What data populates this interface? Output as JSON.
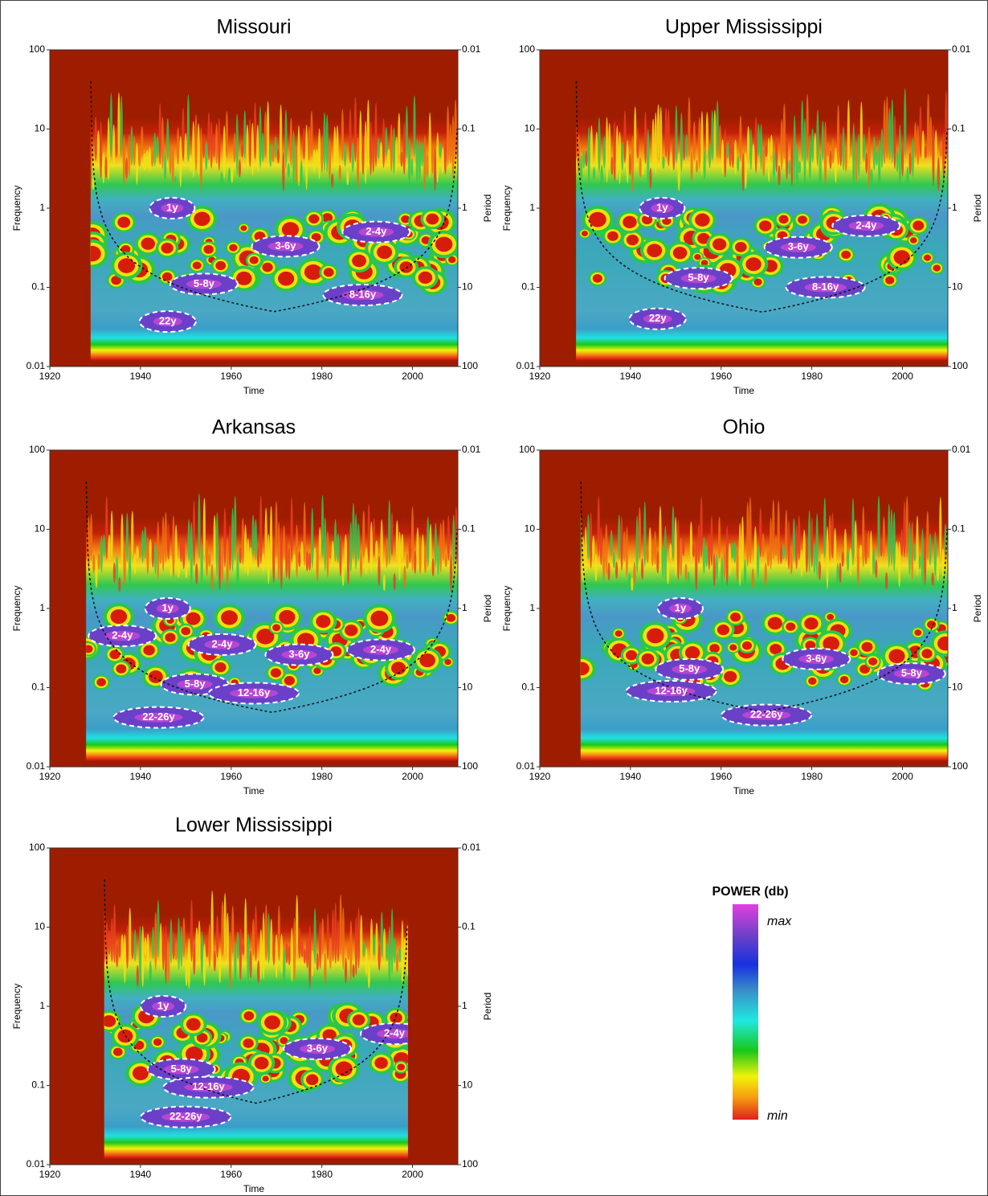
{
  "chart_data": [
    {
      "type": "wavelet",
      "title": "Missouri",
      "x_label": "Time",
      "y_label": "Frequency",
      "y2_label": "Period",
      "xlim": [
        1920,
        2010
      ],
      "xticks": [
        1920,
        1940,
        1960,
        1980,
        2000
      ],
      "ylim": [
        0.01,
        100
      ],
      "yticks": [
        0.01,
        0.1,
        1,
        10,
        100
      ],
      "y_log": true,
      "y2lim": [
        100,
        0.01
      ],
      "y2ticks": [
        0.01,
        0.1,
        1,
        10,
        100
      ],
      "data_span": [
        1929,
        2010
      ],
      "annotations": [
        {
          "text": "1y",
          "x": 1947,
          "y": 1
        },
        {
          "text": "2-4y",
          "x": 1992,
          "y": 0.5
        },
        {
          "text": "3-6y",
          "x": 1972,
          "y": 0.33
        },
        {
          "text": "5-8y",
          "x": 1954,
          "y": 0.11
        },
        {
          "text": "8-16y",
          "x": 1989,
          "y": 0.08
        },
        {
          "text": "22y",
          "x": 1946,
          "y": 0.037
        }
      ]
    },
    {
      "type": "wavelet",
      "title": "Upper Mississippi",
      "x_label": "Time",
      "y_label": "Frequency",
      "y2_label": "Period",
      "xlim": [
        1920,
        2010
      ],
      "xticks": [
        1920,
        1940,
        1960,
        1980,
        2000
      ],
      "ylim": [
        0.01,
        100
      ],
      "yticks": [
        0.01,
        0.1,
        1,
        10,
        100
      ],
      "y_log": true,
      "y2lim": [
        100,
        0.01
      ],
      "y2ticks": [
        0.01,
        0.1,
        1,
        10,
        100
      ],
      "data_span": [
        1928,
        2010
      ],
      "annotations": [
        {
          "text": "1y",
          "x": 1947,
          "y": 1
        },
        {
          "text": "2-4y",
          "x": 1992,
          "y": 0.6
        },
        {
          "text": "3-6y",
          "x": 1977,
          "y": 0.32
        },
        {
          "text": "5-8y",
          "x": 1955,
          "y": 0.13
        },
        {
          "text": "8-16y",
          "x": 1983,
          "y": 0.1
        },
        {
          "text": "22y",
          "x": 1946,
          "y": 0.04
        }
      ]
    },
    {
      "type": "wavelet",
      "title": "Arkansas",
      "x_label": "Time",
      "y_label": "Frequency",
      "y2_label": "Period",
      "xlim": [
        1920,
        2010
      ],
      "xticks": [
        1920,
        1940,
        1960,
        1980,
        2000
      ],
      "ylim": [
        0.01,
        100
      ],
      "yticks": [
        0.01,
        0.1,
        1,
        10,
        100
      ],
      "y_log": true,
      "y2lim": [
        100,
        0.01
      ],
      "y2ticks": [
        0.01,
        0.1,
        1,
        10,
        100
      ],
      "data_span": [
        1928,
        2010
      ],
      "annotations": [
        {
          "text": "1y",
          "x": 1946,
          "y": 1
        },
        {
          "text": "2-4y",
          "x": 1936,
          "y": 0.45
        },
        {
          "text": "2-4y",
          "x": 1958,
          "y": 0.35
        },
        {
          "text": "2-4y",
          "x": 1993,
          "y": 0.3
        },
        {
          "text": "3-6y",
          "x": 1975,
          "y": 0.26
        },
        {
          "text": "5-8y",
          "x": 1952,
          "y": 0.11
        },
        {
          "text": "12-16y",
          "x": 1965,
          "y": 0.085
        },
        {
          "text": "22-26y",
          "x": 1944,
          "y": 0.042
        }
      ]
    },
    {
      "type": "wavelet",
      "title": "Ohio",
      "x_label": "Time",
      "y_label": "Frequency",
      "y2_label": "Period",
      "xlim": [
        1920,
        2010
      ],
      "xticks": [
        1920,
        1940,
        1960,
        1980,
        2000
      ],
      "ylim": [
        0.01,
        100
      ],
      "yticks": [
        0.01,
        0.1,
        1,
        10,
        100
      ],
      "y_log": true,
      "y2lim": [
        100,
        0.01
      ],
      "y2ticks": [
        0.01,
        0.1,
        1,
        10,
        100
      ],
      "data_span": [
        1929,
        2010
      ],
      "annotations": [
        {
          "text": "1y",
          "x": 1951,
          "y": 1
        },
        {
          "text": "5-8y",
          "x": 1953,
          "y": 0.17
        },
        {
          "text": "3-6y",
          "x": 1981,
          "y": 0.23
        },
        {
          "text": "5-8y",
          "x": 2002,
          "y": 0.15
        },
        {
          "text": "12-16y",
          "x": 1949,
          "y": 0.09
        },
        {
          "text": "22-26y",
          "x": 1970,
          "y": 0.045
        }
      ]
    },
    {
      "type": "wavelet",
      "title": "Lower Mississippi",
      "x_label": "Time",
      "y_label": "Frequency",
      "y2_label": "Period",
      "xlim": [
        1920,
        2010
      ],
      "xticks": [
        1920,
        1940,
        1960,
        1980,
        2000
      ],
      "ylim": [
        0.01,
        100
      ],
      "yticks": [
        0.01,
        0.1,
        1,
        10,
        100
      ],
      "y_log": true,
      "y2lim": [
        100,
        0.01
      ],
      "y2ticks": [
        0.01,
        0.1,
        1,
        10,
        100
      ],
      "data_span": [
        1932,
        1999
      ],
      "annotations": [
        {
          "text": "1y",
          "x": 1945,
          "y": 1
        },
        {
          "text": "2-4y",
          "x": 1996,
          "y": 0.45
        },
        {
          "text": "3-6y",
          "x": 1979,
          "y": 0.29
        },
        {
          "text": "5-8y",
          "x": 1949,
          "y": 0.16
        },
        {
          "text": "12-16y",
          "x": 1955,
          "y": 0.095
        },
        {
          "text": "22-26y",
          "x": 1950,
          "y": 0.04
        }
      ]
    }
  ],
  "colorbar": {
    "title": "POWER (db)",
    "max_label": "max",
    "min_label": "min"
  }
}
